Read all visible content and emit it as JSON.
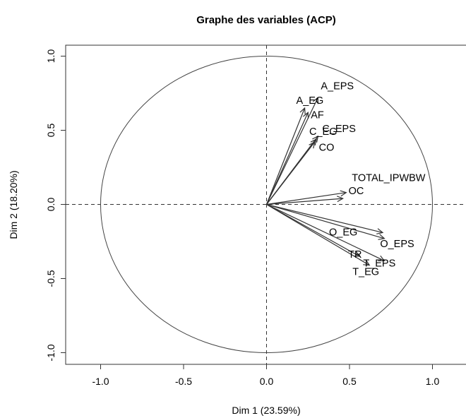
{
  "chart_data": {
    "type": "scatter",
    "subtype": "pca-correlation-circle",
    "title": "Graphe des variables (ACP)",
    "xlabel": "Dim 1 (23.59%)",
    "ylabel": "Dim 2 (18.20%)",
    "xlim": [
      -1.2,
      1.2
    ],
    "ylim": [
      -1.08,
      1.08
    ],
    "xticks": [
      -1.0,
      -0.5,
      0.0,
      0.5,
      1.0
    ],
    "xtick_labels": [
      "-1.0",
      "-0.5",
      "0.0",
      "0.5",
      "1.0"
    ],
    "yticks": [
      -1.0,
      -0.5,
      0.0,
      0.5,
      1.0
    ],
    "ytick_labels": [
      "-1.0",
      "-0.5",
      "0.0",
      "0.5",
      "1.0"
    ],
    "circle_radius": 1.0,
    "reference_lines": "dashed at x=0 and y=0",
    "grid": false,
    "variables": [
      {
        "name": "A_EPS",
        "x": 0.31,
        "y": 0.72
      },
      {
        "name": "A_EG",
        "x": 0.23,
        "y": 0.65
      },
      {
        "name": "AF",
        "x": 0.25,
        "y": 0.62
      },
      {
        "name": "C_EPS",
        "x": 0.31,
        "y": 0.46
      },
      {
        "name": "C_EG",
        "x": 0.3,
        "y": 0.44
      },
      {
        "name": "CO",
        "x": 0.29,
        "y": 0.42
      },
      {
        "name": "TOTAL_IPWBW",
        "x": 0.48,
        "y": 0.08
      },
      {
        "name": "OC",
        "x": 0.46,
        "y": 0.04
      },
      {
        "name": "O_EG",
        "x": 0.7,
        "y": -0.19
      },
      {
        "name": "O_EPS",
        "x": 0.71,
        "y": -0.23
      },
      {
        "name": "T_EPS",
        "x": 0.71,
        "y": -0.38
      },
      {
        "name": "TR",
        "x": 0.56,
        "y": -0.35
      },
      {
        "name": "T_EG",
        "x": 0.62,
        "y": -0.41
      }
    ]
  }
}
